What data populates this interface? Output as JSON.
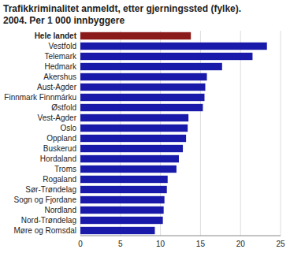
{
  "chart_data": {
    "type": "bar",
    "orientation": "horizontal",
    "title": "Trafikkriminalitet anmeldt, etter gjerningssted (fylke).",
    "subtitle": "2004. Per 1 000 innbyggere",
    "categories": [
      "Hele landet",
      "Vestfold",
      "Telemark",
      "Hedmark",
      "Akershus",
      "Aust-Agder",
      "Finnmark Finnmárku",
      "Østfold",
      "Vest-Agder",
      "Oslo",
      "Oppland",
      "Buskerud",
      "Hordaland",
      "Troms",
      "Rogaland",
      "Sør-Trøndelag",
      "Sogn og Fjordane",
      "Nordland",
      "Nord-Trøndelag",
      "Møre og Romsdal"
    ],
    "values": [
      13.8,
      23.3,
      21.5,
      17.7,
      15.8,
      15.6,
      15.5,
      15.3,
      13.5,
      13.4,
      13.2,
      12.8,
      12.3,
      12.0,
      10.9,
      10.8,
      10.5,
      10.4,
      10.3,
      9.3
    ],
    "colors": [
      "#8B1A1A",
      "#1a1aaa",
      "#1a1aaa",
      "#1a1aaa",
      "#1a1aaa",
      "#1a1aaa",
      "#1a1aaa",
      "#1a1aaa",
      "#1a1aaa",
      "#1a1aaa",
      "#1a1aaa",
      "#1a1aaa",
      "#1a1aaa",
      "#1a1aaa",
      "#1a1aaa",
      "#1a1aaa",
      "#1a1aaa",
      "#1a1aaa",
      "#1a1aaa",
      "#1a1aaa"
    ],
    "xlim": [
      0,
      25
    ],
    "xticks": [
      0,
      5,
      10,
      15,
      20,
      25
    ],
    "grid": true
  }
}
